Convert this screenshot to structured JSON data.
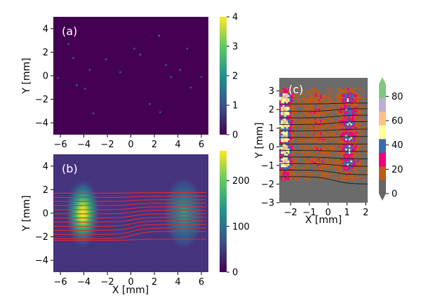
{
  "chart_data": [
    {
      "type": "heatmap",
      "panel_label": "(a)",
      "xlabel": "",
      "ylabel": "Y [mm]",
      "xlim": [
        -6.6,
        6.6
      ],
      "ylim": [
        -5,
        5
      ],
      "x_ticks": [
        "−6",
        "−4",
        "−2",
        "0",
        "2",
        "4",
        "6"
      ],
      "x_tick_values": [
        -6,
        -4,
        -2,
        0,
        2,
        4,
        6
      ],
      "y_ticks": [
        "−4",
        "−2",
        "0",
        "2",
        "4"
      ],
      "y_tick_values": [
        -4,
        -2,
        0,
        2,
        4
      ],
      "colorbar_range": [
        0,
        4
      ],
      "colorbar_ticks": [
        "0",
        "1",
        "2",
        "3",
        "4"
      ],
      "colorbar_tick_values": [
        0,
        1,
        2,
        3,
        4
      ],
      "colormap": "viridis",
      "background_color": "#440154",
      "sparse_points": [
        {
          "x": -5.3,
          "y": 2.7,
          "v": 1
        },
        {
          "x": -4.9,
          "y": 1.5,
          "v": 1
        },
        {
          "x": -4.6,
          "y": -0.8,
          "v": 1.5
        },
        {
          "x": -3.9,
          "y": -1.1,
          "v": 1
        },
        {
          "x": -3.5,
          "y": 0.5,
          "v": 1
        },
        {
          "x": -3.2,
          "y": -3.2,
          "v": 1
        },
        {
          "x": -2.1,
          "y": 1.4,
          "v": 1
        },
        {
          "x": -0.9,
          "y": 0.3,
          "v": 1
        },
        {
          "x": 0.3,
          "y": 2.3,
          "v": 1
        },
        {
          "x": 0.8,
          "y": 1.8,
          "v": 1
        },
        {
          "x": 1.6,
          "y": -2.4,
          "v": 1
        },
        {
          "x": 2.4,
          "y": 3.4,
          "v": 1.5
        },
        {
          "x": 3.0,
          "y": 0.9,
          "v": 1
        },
        {
          "x": 3.4,
          "y": -0.1,
          "v": 1
        },
        {
          "x": 4.2,
          "y": 0.5,
          "v": 1
        },
        {
          "x": 4.8,
          "y": 2.3,
          "v": 1
        },
        {
          "x": 5.1,
          "y": -1.0,
          "v": 1
        },
        {
          "x": 6.0,
          "y": -0.1,
          "v": 1
        },
        {
          "x": -6.2,
          "y": -0.2,
          "v": 1
        },
        {
          "x": 2.5,
          "y": -3.1,
          "v": 1
        }
      ]
    },
    {
      "type": "heatmap",
      "panel_label": "(b)",
      "xlabel": "X [mm]",
      "ylabel": "Y [mm]",
      "xlim": [
        -6.6,
        6.6
      ],
      "ylim": [
        -5,
        5
      ],
      "x_ticks": [
        "−6",
        "−4",
        "−2",
        "0",
        "2",
        "4",
        "6"
      ],
      "x_tick_values": [
        -6,
        -4,
        -2,
        0,
        2,
        4,
        6
      ],
      "y_ticks": [
        "−4",
        "−2",
        "0",
        "2",
        "4"
      ],
      "y_tick_values": [
        -4,
        -2,
        0,
        2,
        4
      ],
      "colorbar_range": [
        0,
        250
      ],
      "colorbar_ticks": [
        "0",
        "100",
        "200"
      ],
      "colorbar_tick_values": [
        0,
        100,
        200
      ],
      "colormap": "viridis",
      "spots": [
        {
          "x": -4.2,
          "y": 0,
          "peak": 240,
          "sx": 0.7,
          "sy": 1.3
        },
        {
          "x": 4.3,
          "y": 0,
          "peak": 110,
          "sx": 0.9,
          "sy": 1.4
        }
      ],
      "trajectory_lines": {
        "color": "#e8282b",
        "count": 13,
        "y_start_left": [
          1.7,
          1.35,
          1.0,
          0.65,
          0.3,
          -0.05,
          -0.4,
          -0.75,
          -1.1,
          -1.45,
          -1.8,
          -2.15,
          -2.3
        ],
        "y_end_right": [
          1.75,
          1.45,
          1.15,
          0.85,
          0.55,
          0.25,
          -0.05,
          -0.35,
          -0.65,
          -0.95,
          -1.25,
          -1.55,
          -2.2
        ]
      }
    },
    {
      "type": "heatmap",
      "panel_label": "(c)",
      "xlabel": "X [mm]",
      "ylabel": "Y [mm]",
      "xlim": [
        -2.6,
        2.1
      ],
      "ylim": [
        -3,
        3.7
      ],
      "x_ticks": [
        "−2",
        "−1",
        "0",
        "1",
        "2"
      ],
      "x_tick_values": [
        -2,
        -1,
        0,
        1,
        2
      ],
      "y_ticks": [
        "−3",
        "−2",
        "−1",
        "0",
        "1",
        "2",
        "3"
      ],
      "y_tick_values": [
        -3,
        -2,
        -1,
        0,
        1,
        2,
        3
      ],
      "colorbar_range": [
        0,
        90
      ],
      "colorbar_ticks": [
        "0",
        "20",
        "40",
        "60",
        "80"
      ],
      "colorbar_tick_values": [
        0,
        20,
        40,
        60,
        80
      ],
      "colormap": "Accent_r",
      "colormap_colors": [
        "#666666",
        "#bf5b17",
        "#f0027f",
        "#386cb0",
        "#ffff99",
        "#fdc086",
        "#beaed4",
        "#7fc97f"
      ],
      "background_color": "#6b6b6b",
      "contour_lines": {
        "color": "#1a1a1a",
        "count": 12,
        "y_start_left": [
          2.3,
          1.9,
          1.55,
          1.2,
          0.85,
          0.5,
          0.15,
          -0.2,
          -0.55,
          -0.9,
          -1.25,
          -1.6
        ],
        "y_end_right": [
          2.35,
          2.05,
          1.7,
          1.35,
          0.95,
          0.55,
          0.15,
          -0.25,
          -0.65,
          -1.05,
          -1.5,
          -2.0
        ]
      }
    }
  ]
}
